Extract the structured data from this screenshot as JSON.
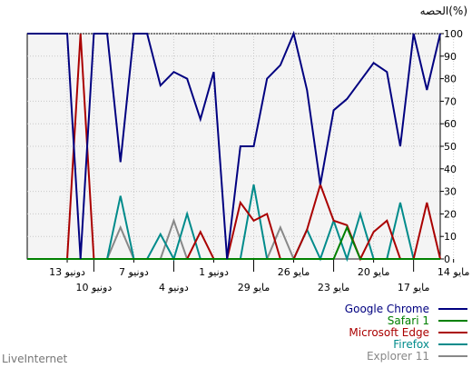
{
  "chart_data": {
    "type": "line",
    "ylabel": "الحصه(%)",
    "ylim": [
      0,
      100
    ],
    "yticks": [
      0,
      10,
      20,
      30,
      40,
      50,
      60,
      70,
      80,
      90,
      100
    ],
    "grid": true,
    "legend_position": "bottom-right",
    "x_labels": [
      {
        "i": 3,
        "text": "13 دونيو",
        "row": 0
      },
      {
        "i": 5,
        "text": "10 دونيو",
        "row": 1
      },
      {
        "i": 8,
        "text": "7 دونيو",
        "row": 0
      },
      {
        "i": 11,
        "text": "4 دونيو",
        "row": 1
      },
      {
        "i": 14,
        "text": "1 دونيو",
        "row": 0
      },
      {
        "i": 17,
        "text": "29 مايو",
        "row": 1
      },
      {
        "i": 20,
        "text": "26 مايو",
        "row": 0
      },
      {
        "i": 23,
        "text": "23 مايو",
        "row": 1
      },
      {
        "i": 26,
        "text": "20 مايو",
        "row": 0
      },
      {
        "i": 29,
        "text": "17 مايو",
        "row": 1
      },
      {
        "i": 32,
        "text": "14 مايو",
        "row": 0
      }
    ],
    "series": [
      {
        "name": "Google Chrome",
        "color": "#000080",
        "values": [
          100,
          100,
          100,
          100,
          0,
          100,
          100,
          43,
          100,
          100,
          77,
          83,
          80,
          62,
          83,
          0,
          50,
          50,
          80,
          86,
          100,
          75,
          33,
          66,
          71,
          79,
          87,
          83,
          50,
          100,
          75,
          100
        ]
      },
      {
        "name": "Safari 1",
        "color": "#008000",
        "values": [
          0,
          0,
          0,
          0,
          0,
          0,
          0,
          0,
          0,
          0,
          0,
          0,
          0,
          0,
          0,
          0,
          0,
          0,
          0,
          0,
          0,
          0,
          0,
          0,
          14,
          0,
          0,
          0,
          0,
          0,
          0,
          0
        ]
      },
      {
        "name": "Microsoft Edge",
        "color": "#aa0000",
        "values": [
          0,
          0,
          0,
          0,
          100,
          0,
          0,
          0,
          0,
          0,
          0,
          0,
          0,
          12,
          0,
          0,
          25,
          17,
          20,
          0,
          0,
          13,
          33,
          17,
          15,
          0,
          12,
          17,
          0,
          0,
          25,
          0
        ]
      },
      {
        "name": "Firefox",
        "color": "#008b8b",
        "values": [
          0,
          0,
          0,
          0,
          0,
          0,
          0,
          28,
          0,
          0,
          11,
          0,
          20,
          0,
          0,
          0,
          0,
          33,
          0,
          0,
          0,
          13,
          0,
          17,
          0,
          20,
          0,
          0,
          25,
          0,
          0,
          0
        ]
      },
      {
        "name": "Explorer 11",
        "color": "#888888",
        "values": [
          0,
          0,
          0,
          0,
          0,
          0,
          0,
          14,
          0,
          0,
          0,
          17,
          0,
          0,
          0,
          0,
          0,
          0,
          0,
          14,
          0,
          0,
          0,
          0,
          0,
          0,
          0,
          0,
          0,
          0,
          0,
          0
        ]
      }
    ]
  },
  "brand": "LiveInternet"
}
